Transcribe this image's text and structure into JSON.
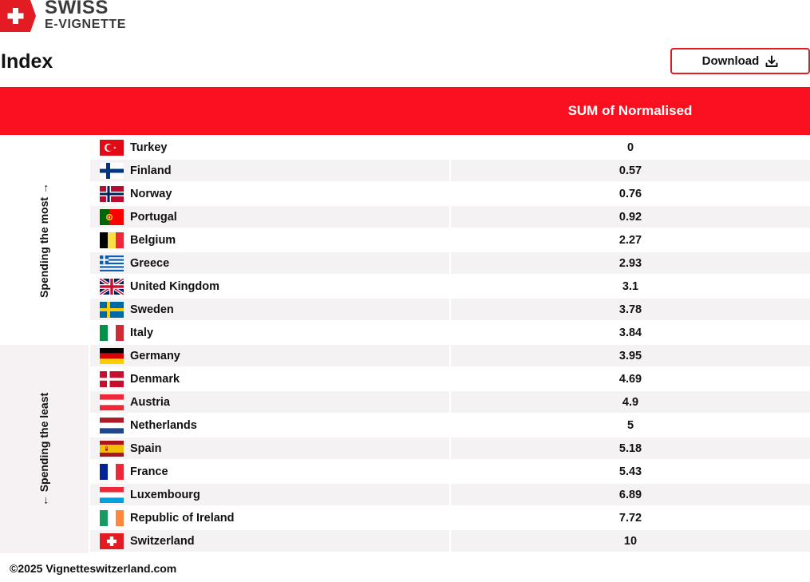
{
  "brand": {
    "line1": "SWISS",
    "line2": "E-VIGNETTE",
    "color": "#e31b23"
  },
  "page": {
    "title": "Index",
    "download_label": "Download"
  },
  "table": {
    "column_header": "SUM of Normalised",
    "header_color": "#fa0f1e",
    "groups": {
      "most": "Spending the most →",
      "least": "← Spending the least"
    },
    "rows": [
      {
        "country": "Turkey",
        "flag": "turkey-flag",
        "value": "0"
      },
      {
        "country": "Finland",
        "flag": "finland-flag",
        "value": "0.57"
      },
      {
        "country": "Norway",
        "flag": "norway-flag",
        "value": "0.76"
      },
      {
        "country": "Portugal",
        "flag": "portugal-flag",
        "value": "0.92"
      },
      {
        "country": "Belgium",
        "flag": "belgium-flag",
        "value": "2.27"
      },
      {
        "country": "Greece",
        "flag": "greece-flag",
        "value": "2.93"
      },
      {
        "country": "United Kingdom",
        "flag": "united-kingdom-flag",
        "value": "3.1"
      },
      {
        "country": "Sweden",
        "flag": "sweden-flag",
        "value": "3.78"
      },
      {
        "country": "Italy",
        "flag": "italy-flag",
        "value": "3.84"
      },
      {
        "country": "Germany",
        "flag": "germany-flag",
        "value": "3.95"
      },
      {
        "country": "Denmark",
        "flag": "denmark-flag",
        "value": "4.69"
      },
      {
        "country": "Austria",
        "flag": "austria-flag",
        "value": "4.9"
      },
      {
        "country": "Netherlands",
        "flag": "netherlands-flag",
        "value": "5"
      },
      {
        "country": "Spain",
        "flag": "spain-flag",
        "value": "5.18"
      },
      {
        "country": "France",
        "flag": "france-flag",
        "value": "5.43"
      },
      {
        "country": "Luxembourg",
        "flag": "luxembourg-flag",
        "value": "6.89"
      },
      {
        "country": "Republic of Ireland",
        "flag": "ireland-flag",
        "value": "7.72"
      },
      {
        "country": "Switzerland",
        "flag": "switzerland-flag",
        "value": "10"
      }
    ]
  },
  "footer": {
    "text": "©2025 Vignetteswitzerland.com"
  }
}
